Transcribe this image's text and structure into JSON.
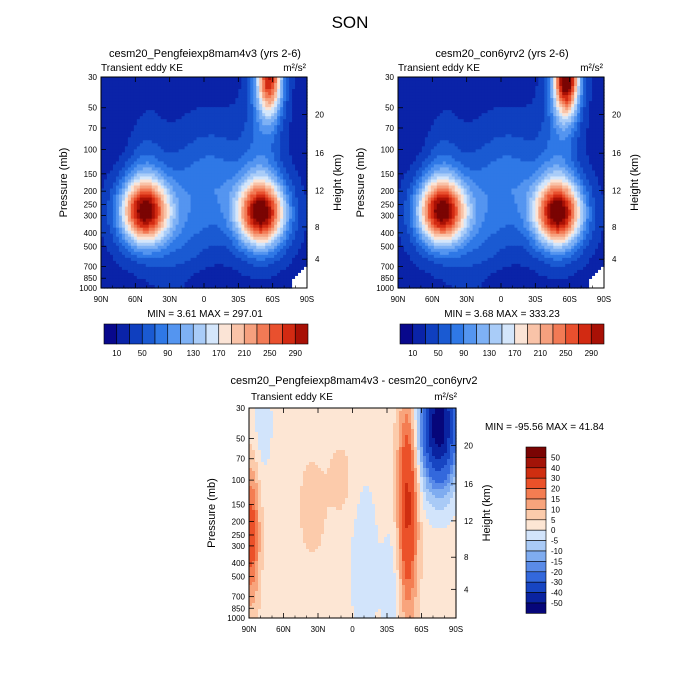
{
  "figure": {
    "title": "SON"
  },
  "chart_data": [
    {
      "type": "heatmap",
      "title": "cesm20_Pengfeiexp8mam4v3 (yrs 2-6)",
      "subtitle_left": "Transient eddy KE",
      "units": "m²/s²",
      "ylabel": "Pressure (mb)",
      "ylabel_right": "Height (km)",
      "x_ticks": [
        "90N",
        "60N",
        "30N",
        "0",
        "30S",
        "60S",
        "90S"
      ],
      "xlim": [
        90,
        -90
      ],
      "y_ticks": [
        "30",
        "50",
        "70",
        "100",
        "150",
        "200",
        "250",
        "300",
        "400",
        "500",
        "700",
        "850",
        "1000"
      ],
      "ylim_mb": [
        1000,
        30
      ],
      "height_ticks": [
        "4",
        "8",
        "12",
        "16",
        "20"
      ],
      "stats": "MIN =  3.61  MAX = 297.01",
      "min": 3.61,
      "max": 297.01,
      "colorbar_labels": [
        "10",
        "50",
        "90",
        "130",
        "170",
        "210",
        "250",
        "290"
      ],
      "features": [
        {
          "kind": "jet",
          "lat": 52,
          "p": 280,
          "peak": 290
        },
        {
          "kind": "jet",
          "lat": -50,
          "p": 290,
          "peak": 290
        },
        {
          "kind": "upper",
          "lat": -57,
          "p": 30,
          "peak": 260
        }
      ]
    },
    {
      "type": "heatmap",
      "title": "cesm20_con6yrv2 (yrs 2-6)",
      "subtitle_left": "Transient eddy KE",
      "units": "m²/s²",
      "ylabel": "Pressure (mb)",
      "ylabel_right": "Height (km)",
      "x_ticks": [
        "90N",
        "60N",
        "30N",
        "0",
        "30S",
        "60S",
        "90S"
      ],
      "xlim": [
        90,
        -90
      ],
      "y_ticks": [
        "30",
        "50",
        "70",
        "100",
        "150",
        "200",
        "250",
        "300",
        "400",
        "500",
        "700",
        "850",
        "1000"
      ],
      "ylim_mb": [
        1000,
        30
      ],
      "height_ticks": [
        "4",
        "8",
        "12",
        "16",
        "20"
      ],
      "stats": "MIN =  3.68  MAX = 333.23",
      "min": 3.68,
      "max": 333.23,
      "colorbar_labels": [
        "10",
        "50",
        "90",
        "130",
        "170",
        "210",
        "250",
        "290"
      ],
      "features": [
        {
          "kind": "jet",
          "lat": 52,
          "p": 280,
          "peak": 290
        },
        {
          "kind": "jet",
          "lat": -50,
          "p": 290,
          "peak": 290
        },
        {
          "kind": "upper",
          "lat": -57,
          "p": 30,
          "peak": 320
        }
      ]
    },
    {
      "type": "heatmap",
      "title": "cesm20_Pengfeiexp8mam4v3 - cesm20_con6yrv2",
      "subtitle_left": "Transient eddy KE",
      "units": "m²/s²",
      "ylabel": "Pressure (mb)",
      "ylabel_right": "Height (km)",
      "x_ticks": [
        "90N",
        "60N",
        "30N",
        "0",
        "30S",
        "60S",
        "90S"
      ],
      "xlim": [
        90,
        -90
      ],
      "y_ticks": [
        "30",
        "50",
        "70",
        "100",
        "150",
        "200",
        "250",
        "300",
        "400",
        "500",
        "700",
        "850",
        "1000"
      ],
      "ylim_mb": [
        1000,
        30
      ],
      "height_ticks": [
        "4",
        "8",
        "12",
        "16",
        "20"
      ],
      "stats": "MIN = -95.56  MAX =  41.84",
      "min": -95.56,
      "max": 41.84,
      "colorbar_labels": [
        "50",
        "40",
        "30",
        "20",
        "15",
        "10",
        "5",
        "0",
        "-5",
        "-10",
        "-15",
        "-20",
        "-30",
        "-40",
        "-50"
      ],
      "features": [
        {
          "kind": "pos",
          "lat": -48,
          "p": 150,
          "peak": 30
        },
        {
          "kind": "pos",
          "lat": 88,
          "p": 250,
          "peak": 22
        },
        {
          "kind": "neg",
          "lat": -75,
          "p": 40,
          "peak": -60
        }
      ]
    }
  ],
  "colors": {
    "fill_scale": [
      "#08088c",
      "#0a23a8",
      "#0f3fbf",
      "#1a5ad2",
      "#2f78e6",
      "#5495f0",
      "#7eb1f5",
      "#a9ccf8",
      "#d4e6fb",
      "#fbe4d6",
      "#f9c3a8",
      "#f6a07e",
      "#f27a55",
      "#e9502e",
      "#d22a12",
      "#a81005",
      "#7a0403"
    ],
    "diff_positive": [
      "#fde6d4",
      "#fccbab",
      "#f8a47c",
      "#f47d52",
      "#eb5129",
      "#cf2e10",
      "#a31408",
      "#7a0403"
    ],
    "diff_negative": [
      "#d2e4fb",
      "#a9caf6",
      "#7facf0",
      "#5a8be8",
      "#3368dc",
      "#1745c2",
      "#0a23a0",
      "#06067a"
    ]
  }
}
